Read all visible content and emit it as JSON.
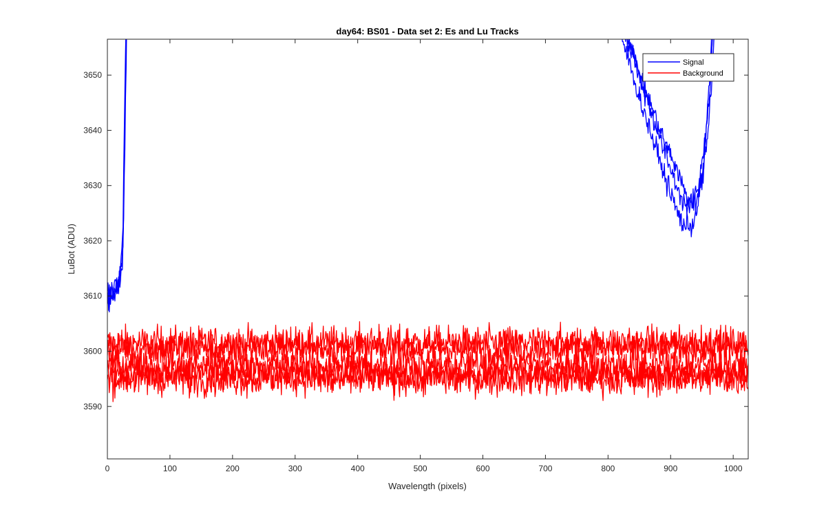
{
  "chart_data": {
    "type": "line",
    "title": "day64: BS01 - Data set 2: Es and Lu Tracks",
    "xlabel": "Wavelength (pixels)",
    "ylabel": "LuBot (ADU)",
    "xlim": [
      0,
      1024
    ],
    "ylim": [
      3580.5,
      3656.5
    ],
    "xticks": [
      0,
      100,
      200,
      300,
      400,
      500,
      600,
      700,
      800,
      900,
      1000
    ],
    "yticks": [
      3590,
      3600,
      3610,
      3620,
      3630,
      3640,
      3650
    ],
    "grid": false,
    "legend": {
      "location": "top-right",
      "entries": [
        "Signal",
        "Background"
      ]
    },
    "colors": {
      "Signal": "#0000ff",
      "Background": "#ff0000",
      "axes": "#262626"
    },
    "series": [
      {
        "name": "Signal",
        "color": "#0000ff",
        "noise": 1.0,
        "tracks": [
          {
            "x": [
              0,
              5,
              10,
              15,
              20,
              23,
              25,
              27,
              29,
              31
            ],
            "y": [
              3609,
              3610,
              3611,
              3612,
              3613,
              3615,
              3620,
              3635,
              3648,
              3662
            ]
          },
          {
            "x": [
              0,
              5,
              10,
              15,
              20,
              23,
              25,
              27,
              29,
              31
            ],
            "y": [
              3611,
              3611.5,
              3612,
              3612.5,
              3614,
              3617,
              3624,
              3640,
              3655,
              3662
            ]
          },
          {
            "x": [
              0,
              5,
              10,
              15,
              20,
              23,
              25,
              27,
              29,
              31
            ],
            "y": [
              3608,
              3609,
              3610,
              3611,
              3612,
              3614,
              3618,
              3632,
              3645,
              3662
            ]
          },
          {
            "x": [
              770,
              790,
              810,
              830,
              850,
              870,
              890,
              910,
              925,
              935,
              945,
              955,
              963,
              970
            ],
            "y": [
              3680,
              3670,
              3664,
              3657,
              3650,
              3644,
              3638,
              3633,
              3628,
              3627,
              3630,
              3638,
              3648,
              3662
            ]
          },
          {
            "x": [
              800,
              830,
              850,
              870,
              890,
              910,
              920,
              930,
              940,
              950,
              958,
              965,
              972
            ],
            "y": [
              3668,
              3658,
              3650,
              3643,
              3636,
              3630,
              3627,
              3626,
              3627,
              3631,
              3638,
              3648,
              3662
            ]
          },
          {
            "x": [
              800,
              830,
              850,
              870,
              890,
              905,
              915,
              925,
              935,
              945,
              953,
              960,
              968
            ],
            "y": [
              3662,
              3654,
              3646,
              3639,
              3632,
              3627,
              3624,
              3622.5,
              3623,
              3627,
              3634,
              3645,
              3662
            ]
          }
        ]
      },
      {
        "name": "Background",
        "color": "#ff0000",
        "noise": 1.5,
        "tracks": [
          {
            "x": [
              0,
              1024
            ],
            "y": [
              3601.5,
              3601.5
            ]
          },
          {
            "x": [
              0,
              1024
            ],
            "y": [
              3600.5,
              3600.5
            ]
          },
          {
            "x": [
              0,
              1024
            ],
            "y": [
              3597.5,
              3597.5
            ]
          },
          {
            "x": [
              0,
              1024
            ],
            "y": [
              3596,
              3596
            ]
          },
          {
            "x": [
              0,
              1024
            ],
            "y": [
              3595,
              3595
            ]
          }
        ]
      }
    ]
  }
}
